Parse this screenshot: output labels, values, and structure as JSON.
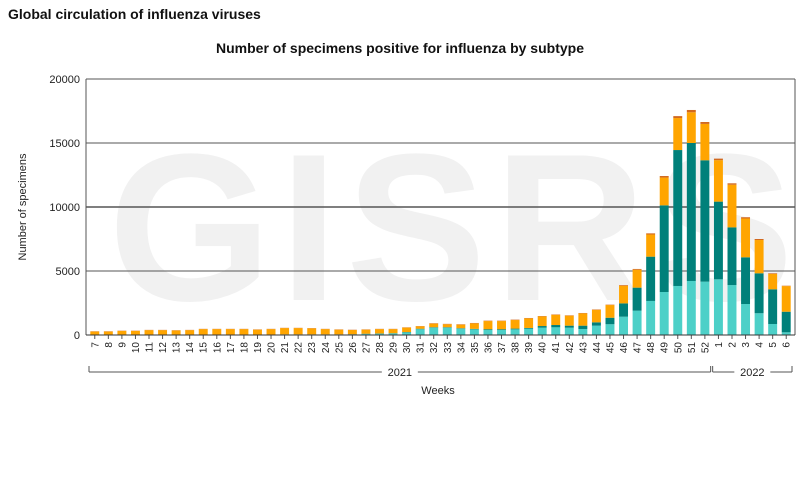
{
  "page_title": "Global circulation of influenza viruses",
  "watermark": "GISRS",
  "chart_data": {
    "type": "bar",
    "stacked": true,
    "title": "Number of specimens positive for influenza by subtype",
    "xlabel": "Weeks",
    "ylabel": "Number of specimens",
    "ylim": [
      0,
      20000
    ],
    "yticks": [
      0,
      5000,
      10000,
      15000,
      20000
    ],
    "grid": true,
    "categories": [
      "7",
      "8",
      "9",
      "10",
      "11",
      "12",
      "13",
      "14",
      "15",
      "16",
      "17",
      "18",
      "19",
      "20",
      "21",
      "22",
      "23",
      "24",
      "25",
      "26",
      "27",
      "28",
      "29",
      "30",
      "31",
      "32",
      "33",
      "34",
      "35",
      "36",
      "37",
      "38",
      "39",
      "40",
      "41",
      "42",
      "43",
      "44",
      "45",
      "46",
      "47",
      "48",
      "49",
      "50",
      "51",
      "52",
      "1",
      "2",
      "3",
      "4",
      "5",
      "6"
    ],
    "year_groups": [
      {
        "label": "2021",
        "from_index": 0,
        "to_index": 45
      },
      {
        "label": "2022",
        "from_index": 46,
        "to_index": 51
      }
    ],
    "series": [
      {
        "name": "light-teal",
        "color": "#4dd0c8",
        "values": [
          10,
          10,
          20,
          20,
          20,
          20,
          20,
          20,
          20,
          20,
          20,
          20,
          20,
          20,
          30,
          30,
          30,
          30,
          30,
          40,
          80,
          100,
          120,
          200,
          450,
          570,
          570,
          490,
          440,
          390,
          390,
          440,
          490,
          570,
          600,
          570,
          470,
          730,
          840,
          1430,
          1900,
          2660,
          3360,
          3830,
          4220,
          4170,
          4350,
          3900,
          2420,
          1700,
          860,
          210
        ]
      },
      {
        "name": "dark-teal",
        "color": "#00807a",
        "values": [
          10,
          10,
          20,
          20,
          20,
          20,
          20,
          20,
          20,
          20,
          20,
          20,
          20,
          20,
          20,
          20,
          20,
          20,
          20,
          20,
          20,
          20,
          20,
          30,
          40,
          40,
          40,
          40,
          40,
          60,
          60,
          60,
          60,
          130,
          180,
          160,
          260,
          260,
          510,
          1040,
          1800,
          3460,
          6770,
          10620,
          10780,
          9480,
          6070,
          4510,
          3650,
          3120,
          2710,
          1610
        ]
      },
      {
        "name": "orange",
        "color": "#ffa500",
        "values": [
          250,
          250,
          280,
          280,
          340,
          340,
          310,
          340,
          420,
          420,
          420,
          420,
          380,
          420,
          490,
          490,
          470,
          410,
          370,
          330,
          320,
          340,
          320,
          350,
          190,
          280,
          230,
          280,
          430,
          640,
          640,
          670,
          750,
          750,
          800,
          780,
          960,
          980,
          990,
          1380,
          1400,
          1730,
          2170,
          2500,
          2400,
          2840,
          3240,
          3330,
          3030,
          2600,
          1200,
          2000
        ]
      },
      {
        "name": "dark-orange",
        "color": "#d2691e",
        "values": [
          20,
          20,
          20,
          20,
          20,
          20,
          20,
          20,
          20,
          20,
          20,
          20,
          20,
          20,
          20,
          20,
          20,
          20,
          20,
          20,
          20,
          20,
          20,
          20,
          20,
          30,
          30,
          30,
          30,
          30,
          30,
          30,
          30,
          30,
          30,
          30,
          30,
          30,
          30,
          50,
          60,
          90,
          120,
          150,
          180,
          150,
          120,
          110,
          100,
          80,
          50,
          30
        ]
      }
    ]
  }
}
